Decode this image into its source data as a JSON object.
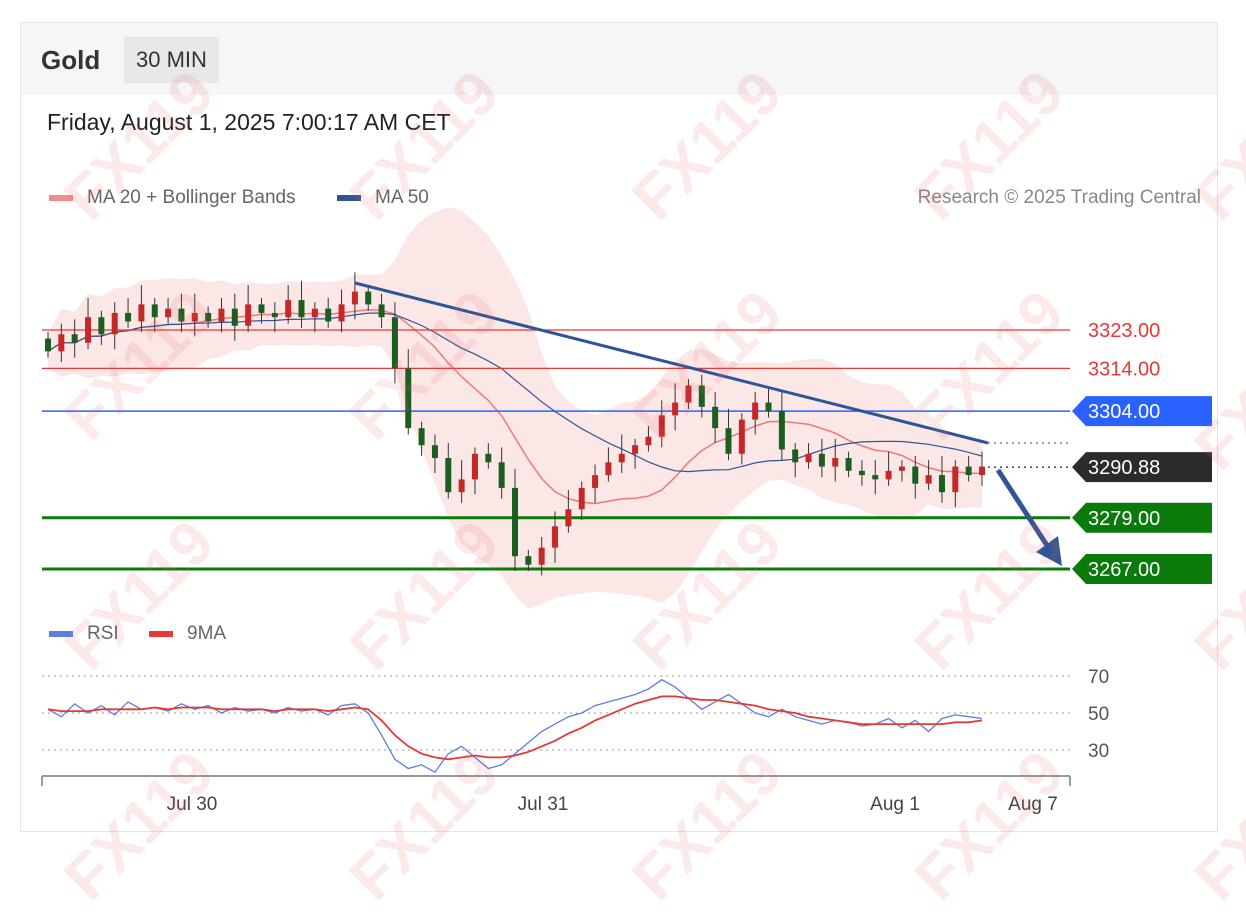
{
  "header": {
    "symbol": "Gold",
    "timeframe": "30 MIN",
    "datetime": "Friday, August 1, 2025 7:00:17 AM CET",
    "credit": "Research © 2025 Trading Central"
  },
  "legend": {
    "main": [
      {
        "label": "MA 20 + Bollinger Bands",
        "color": "#f08c8c"
      },
      {
        "label": "MA 50",
        "color": "#2f5597"
      }
    ],
    "rsi": [
      {
        "label": "RSI",
        "color": "#5b7fe0"
      },
      {
        "label": "9MA",
        "color": "#e53935"
      }
    ]
  },
  "watermark": "FX119",
  "chart_data": {
    "type": "candlestick",
    "x_ticks": [
      "Jul 30",
      "Jul 31",
      "Aug 1",
      "Aug 7"
    ],
    "ylim": [
      3260,
      3340
    ],
    "levels": [
      {
        "value": 3323.0,
        "label": "3323.00",
        "type": "resistance",
        "color": "#e53935"
      },
      {
        "value": 3314.0,
        "label": "3314.00",
        "type": "resistance",
        "color": "#e53935"
      },
      {
        "value": 3304.0,
        "label": "3304.00",
        "type": "pivot",
        "color": "#2962ff"
      },
      {
        "value": 3290.88,
        "label": "3290.88",
        "type": "last_price",
        "color": "#2b2b2b"
      },
      {
        "value": 3279.0,
        "label": "3279.00",
        "type": "support",
        "color": "#0a7a0a"
      },
      {
        "value": 3267.0,
        "label": "3267.00",
        "type": "support",
        "color": "#0a7a0a"
      }
    ],
    "close_path": [
      3318,
      3322,
      3320,
      3326,
      3322,
      3327,
      3325,
      3329,
      3326,
      3328,
      3325,
      3327,
      3325,
      3328,
      3324,
      3329,
      3327,
      3326,
      3330,
      3326,
      3328,
      3325,
      3329,
      3332,
      3329,
      3326,
      3314,
      3300,
      3296,
      3293,
      3285,
      3288,
      3294,
      3292,
      3286,
      3270,
      3268,
      3272,
      3277,
      3281,
      3286,
      3289,
      3292,
      3294,
      3296,
      3298,
      3303,
      3306,
      3310,
      3305,
      3300,
      3294,
      3302,
      3306,
      3304,
      3295,
      3292,
      3294,
      3291,
      3293,
      3290,
      3289,
      3288,
      3290,
      3291,
      3287,
      3289,
      3285,
      3291,
      3289,
      3291
    ],
    "rsi": {
      "levels": [
        70,
        50,
        30
      ],
      "ylim": [
        15,
        80
      ],
      "values": [
        52,
        48,
        55,
        50,
        54,
        49,
        56,
        52,
        53,
        51,
        55,
        52,
        54,
        50,
        53,
        51,
        52,
        50,
        53,
        51,
        52,
        49,
        54,
        55,
        50,
        38,
        25,
        20,
        22,
        18,
        28,
        32,
        26,
        20,
        22,
        28,
        34,
        40,
        44,
        48,
        50,
        54,
        56,
        58,
        60,
        63,
        68,
        64,
        58,
        52,
        56,
        60,
        55,
        50,
        48,
        52,
        48,
        46,
        44,
        46,
        45,
        43,
        44,
        47,
        42,
        46,
        40,
        47,
        49,
        48,
        47
      ],
      "ma": [
        52,
        51,
        51,
        51,
        52,
        52,
        52,
        52,
        53,
        52,
        53,
        53,
        53,
        52,
        52,
        52,
        52,
        51,
        52,
        52,
        52,
        51,
        52,
        53,
        52,
        46,
        38,
        32,
        28,
        26,
        25,
        26,
        27,
        26,
        26,
        27,
        29,
        32,
        35,
        39,
        42,
        46,
        49,
        52,
        55,
        57,
        59,
        59,
        58,
        57,
        57,
        56,
        55,
        54,
        52,
        51,
        50,
        48,
        47,
        46,
        45,
        44,
        44,
        44,
        44,
        44,
        44,
        44,
        45,
        45,
        46
      ]
    }
  }
}
